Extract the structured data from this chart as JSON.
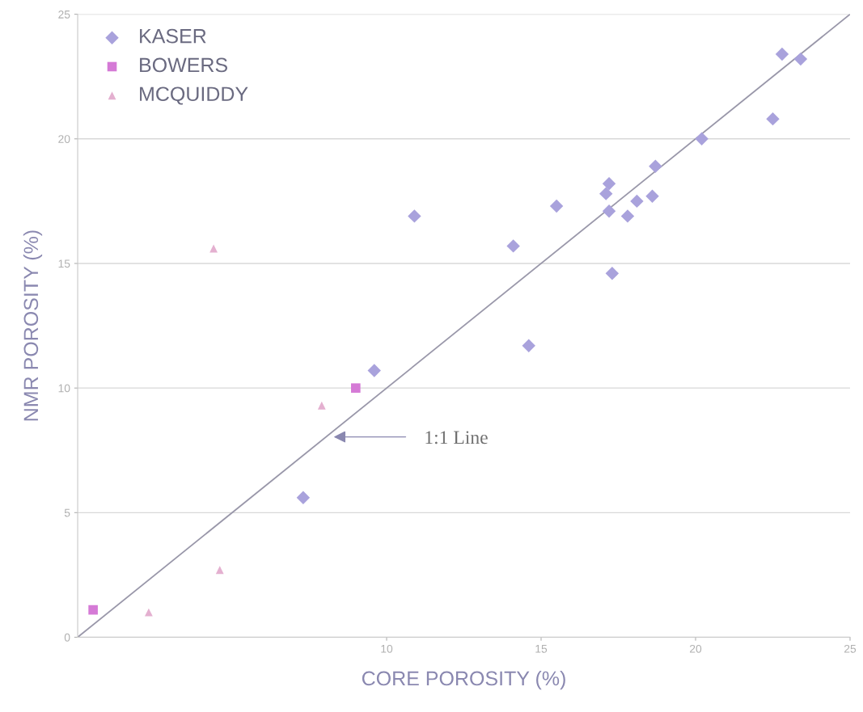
{
  "chart_data": {
    "type": "scatter",
    "xlabel": "CORE POROSITY (%)",
    "ylabel": "NMR POROSITY (%)",
    "xlim": [
      0,
      25
    ],
    "ylim": [
      0,
      25
    ],
    "xticks": [
      10,
      15,
      20,
      25
    ],
    "yticks": [
      0,
      5,
      10,
      15,
      20,
      25
    ],
    "grid": "y",
    "legend": "top left",
    "annotations": [
      "1:1 Line"
    ],
    "series": [
      {
        "name": "KASER",
        "color": "#a9a2dc",
        "marker": "diamond",
        "x": [
          22.8,
          23.4,
          22.5,
          20.2,
          18.7,
          17.2,
          17.1,
          18.6,
          18.1,
          15.5,
          17.2,
          17.8,
          17.3,
          10.9,
          14.1,
          14.6,
          9.6,
          7.3
        ],
        "values": [
          23.4,
          23.2,
          20.8,
          20.0,
          18.9,
          18.2,
          17.8,
          17.7,
          17.5,
          17.3,
          17.1,
          16.9,
          14.6,
          16.9,
          15.7,
          11.7,
          10.7,
          5.6
        ]
      },
      {
        "name": "BOWERS",
        "color": "#d57ad6",
        "marker": "square",
        "x": [
          0.5,
          9.0
        ],
        "values": [
          1.1,
          10.0
        ]
      },
      {
        "name": "MCQUIDDY",
        "color": "#e4b0d0",
        "marker": "triangle",
        "x": [
          2.3,
          4.6,
          7.9,
          4.4
        ],
        "values": [
          1.0,
          2.7,
          9.3,
          15.6
        ]
      },
      {
        "type": "line",
        "color": "#9a98aa",
        "marker": "none",
        "x": [
          0,
          25
        ],
        "values": [
          0,
          25
        ]
      }
    ]
  }
}
